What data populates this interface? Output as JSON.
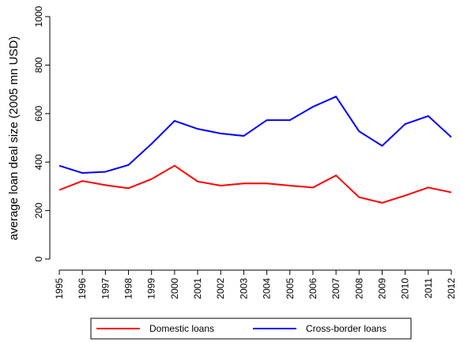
{
  "chart_data": {
    "type": "line",
    "y_label": "average loan deal size (2005 mn USD)",
    "categories": [
      "1995",
      "1996",
      "1997",
      "1998",
      "1999",
      "2000",
      "2001",
      "2002",
      "2003",
      "2004",
      "2005",
      "2006",
      "2007",
      "2008",
      "2009",
      "2010",
      "2011",
      "2012"
    ],
    "series": [
      {
        "name": "Domestic loans",
        "color": "#ff0000",
        "values": [
          285,
          322,
          305,
          292,
          330,
          385,
          320,
          303,
          312,
          312,
          303,
          295,
          345,
          255,
          232,
          262,
          295,
          275
        ]
      },
      {
        "name": "Cross-border loans",
        "color": "#0000ff",
        "values": [
          385,
          355,
          360,
          388,
          475,
          570,
          537,
          518,
          508,
          573,
          573,
          628,
          670,
          527,
          467,
          557,
          590,
          503
        ]
      }
    ],
    "ylim": [
      0,
      1000
    ],
    "yticks": [
      0,
      200,
      400,
      600,
      800,
      1000
    ]
  }
}
